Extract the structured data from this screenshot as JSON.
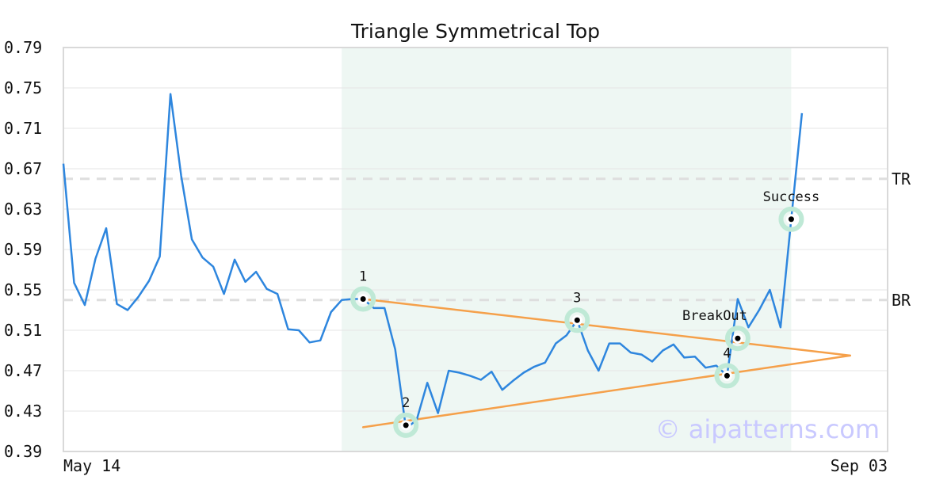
{
  "chart_data": {
    "type": "line",
    "title": "Triangle Symmetrical Top",
    "x_tick_labels": [
      "May 14",
      "Sep 03"
    ],
    "ylim": [
      0.39,
      0.79
    ],
    "y_ticks": [
      0.39,
      0.43,
      0.47,
      0.51,
      0.55,
      0.59,
      0.63,
      0.67,
      0.71,
      0.75,
      0.79
    ],
    "y_tick_labels": [
      "0.39",
      "0.43",
      "0.47",
      "0.51",
      "0.55",
      "0.59",
      "0.63",
      "0.67",
      "0.71",
      "0.75",
      "0.79"
    ],
    "xlim": [
      0,
      77
    ],
    "grid": "horizontal",
    "series": [
      {
        "color": "#2e86de",
        "values": [
          0.675,
          0.557,
          0.535,
          0.581,
          0.611,
          0.536,
          0.53,
          0.543,
          0.559,
          0.583,
          0.744,
          0.663,
          0.6,
          0.582,
          0.573,
          0.546,
          0.58,
          0.558,
          0.568,
          0.551,
          0.546,
          0.511,
          0.51,
          0.498,
          0.5,
          0.528,
          0.54,
          0.541,
          0.541,
          0.532,
          0.532,
          0.491,
          0.413,
          0.421,
          0.458,
          0.428,
          0.47,
          0.468,
          0.465,
          0.461,
          0.469,
          0.451,
          0.46,
          0.468,
          0.474,
          0.478,
          0.497,
          0.505,
          0.52,
          0.49,
          0.47,
          0.497,
          0.497,
          0.488,
          0.486,
          0.479,
          0.49,
          0.496,
          0.483,
          0.484,
          0.473,
          0.475,
          0.465,
          0.541,
          0.513,
          0.53,
          0.55,
          0.513,
          0.62,
          0.725
        ]
      }
    ],
    "shaded_region": {
      "x_start": 26,
      "x_end": 68,
      "color": "#eef7f3"
    },
    "levels": [
      {
        "label": "TR",
        "value": 0.66
      },
      {
        "label": "BR",
        "value": 0.54
      }
    ],
    "trendlines": [
      {
        "color": "#f5a04a",
        "from": [
          28,
          0.541
        ],
        "to": [
          73.5,
          0.485
        ]
      },
      {
        "color": "#f5a04a",
        "from": [
          28,
          0.414
        ],
        "to": [
          73.5,
          0.485
        ]
      }
    ],
    "markers": [
      {
        "label": "1",
        "x": 28,
        "y": 0.541,
        "label_pos": "above"
      },
      {
        "label": "2",
        "x": 32,
        "y": 0.416,
        "label_pos": "above"
      },
      {
        "label": "3",
        "x": 48,
        "y": 0.52,
        "label_pos": "above"
      },
      {
        "label": "4",
        "x": 62,
        "y": 0.465,
        "label_pos": "above"
      },
      {
        "label": "BreakOut",
        "x": 63,
        "y": 0.502,
        "label_pos": "above-left"
      },
      {
        "label": "Success",
        "x": 68,
        "y": 0.62,
        "label_pos": "above"
      }
    ],
    "marker_halo_color": "#bfe9d6",
    "watermark": "© aipatterns.com"
  }
}
